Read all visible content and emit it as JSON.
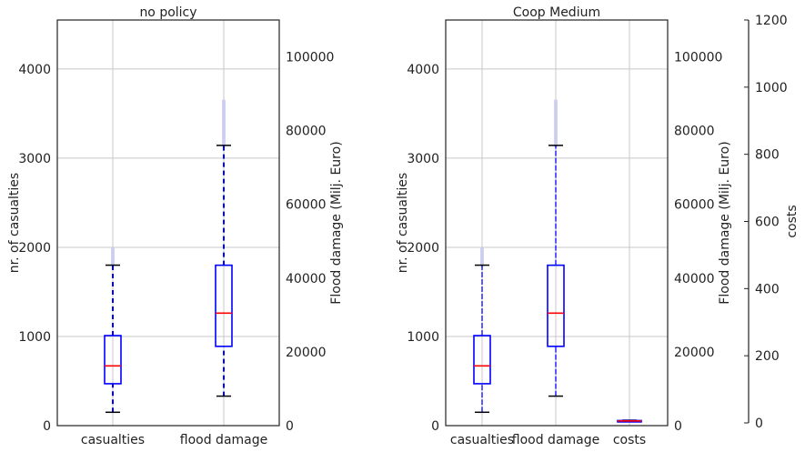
{
  "chart_data": [
    {
      "type": "box",
      "title": "no policy",
      "categories": [
        "casualties",
        "flood damage"
      ],
      "left_axis": {
        "label": "nr. of casualties",
        "ylim": [
          0,
          4550
        ],
        "ticks": [
          0,
          1000,
          2000,
          3000,
          4000
        ]
      },
      "right_axis": {
        "label": "Flood damage (Milj. Euro)",
        "ylim": [
          0,
          110000
        ],
        "ticks": [
          0,
          20000,
          40000,
          60000,
          80000,
          100000
        ]
      },
      "boxes": [
        {
          "category": "casualties",
          "axis": "left",
          "min": 150,
          "q1": 470,
          "median": 670,
          "q3": 1010,
          "max": 1800,
          "outlier_max": 1980
        },
        {
          "category": "flood damage",
          "axis": "right",
          "min": 8000,
          "q1": 21500,
          "median": 30500,
          "q3": 43500,
          "max": 76000,
          "outlier_max": 88000
        }
      ],
      "grid": true
    },
    {
      "type": "box",
      "title": "Coop Medium",
      "categories": [
        "casualties",
        "flood damage",
        "costs"
      ],
      "left_axis": {
        "label": "nr. of casualties",
        "ylim": [
          0,
          4550
        ],
        "ticks": [
          0,
          1000,
          2000,
          3000,
          4000
        ]
      },
      "right_axis": {
        "label": "Flood damage (Milj. Euro)",
        "ylim": [
          0,
          110000
        ],
        "ticks": [
          0,
          20000,
          40000,
          60000,
          80000,
          100000
        ]
      },
      "third_axis": {
        "label": "costs",
        "ylim": [
          0,
          1200
        ],
        "ticks": [
          0,
          200,
          400,
          600,
          800,
          1000,
          1200
        ]
      },
      "boxes": [
        {
          "category": "casualties",
          "axis": "left",
          "min": 150,
          "q1": 470,
          "median": 670,
          "q3": 1010,
          "max": 1800,
          "outlier_max": 1980
        },
        {
          "category": "flood damage",
          "axis": "right",
          "min": 8000,
          "q1": 21500,
          "median": 30500,
          "q3": 43500,
          "max": 76000,
          "outlier_max": 88000
        },
        {
          "category": "costs",
          "axis": "third",
          "min": 4,
          "q1": 5,
          "median": 6,
          "q3": 7,
          "max": 8,
          "outlier_max": 8
        }
      ],
      "grid": true
    }
  ],
  "colors": {
    "box": "#0000ff",
    "median": "#ff0000",
    "whisker_cap": "#000000",
    "outliers": "#c8c8f0"
  }
}
